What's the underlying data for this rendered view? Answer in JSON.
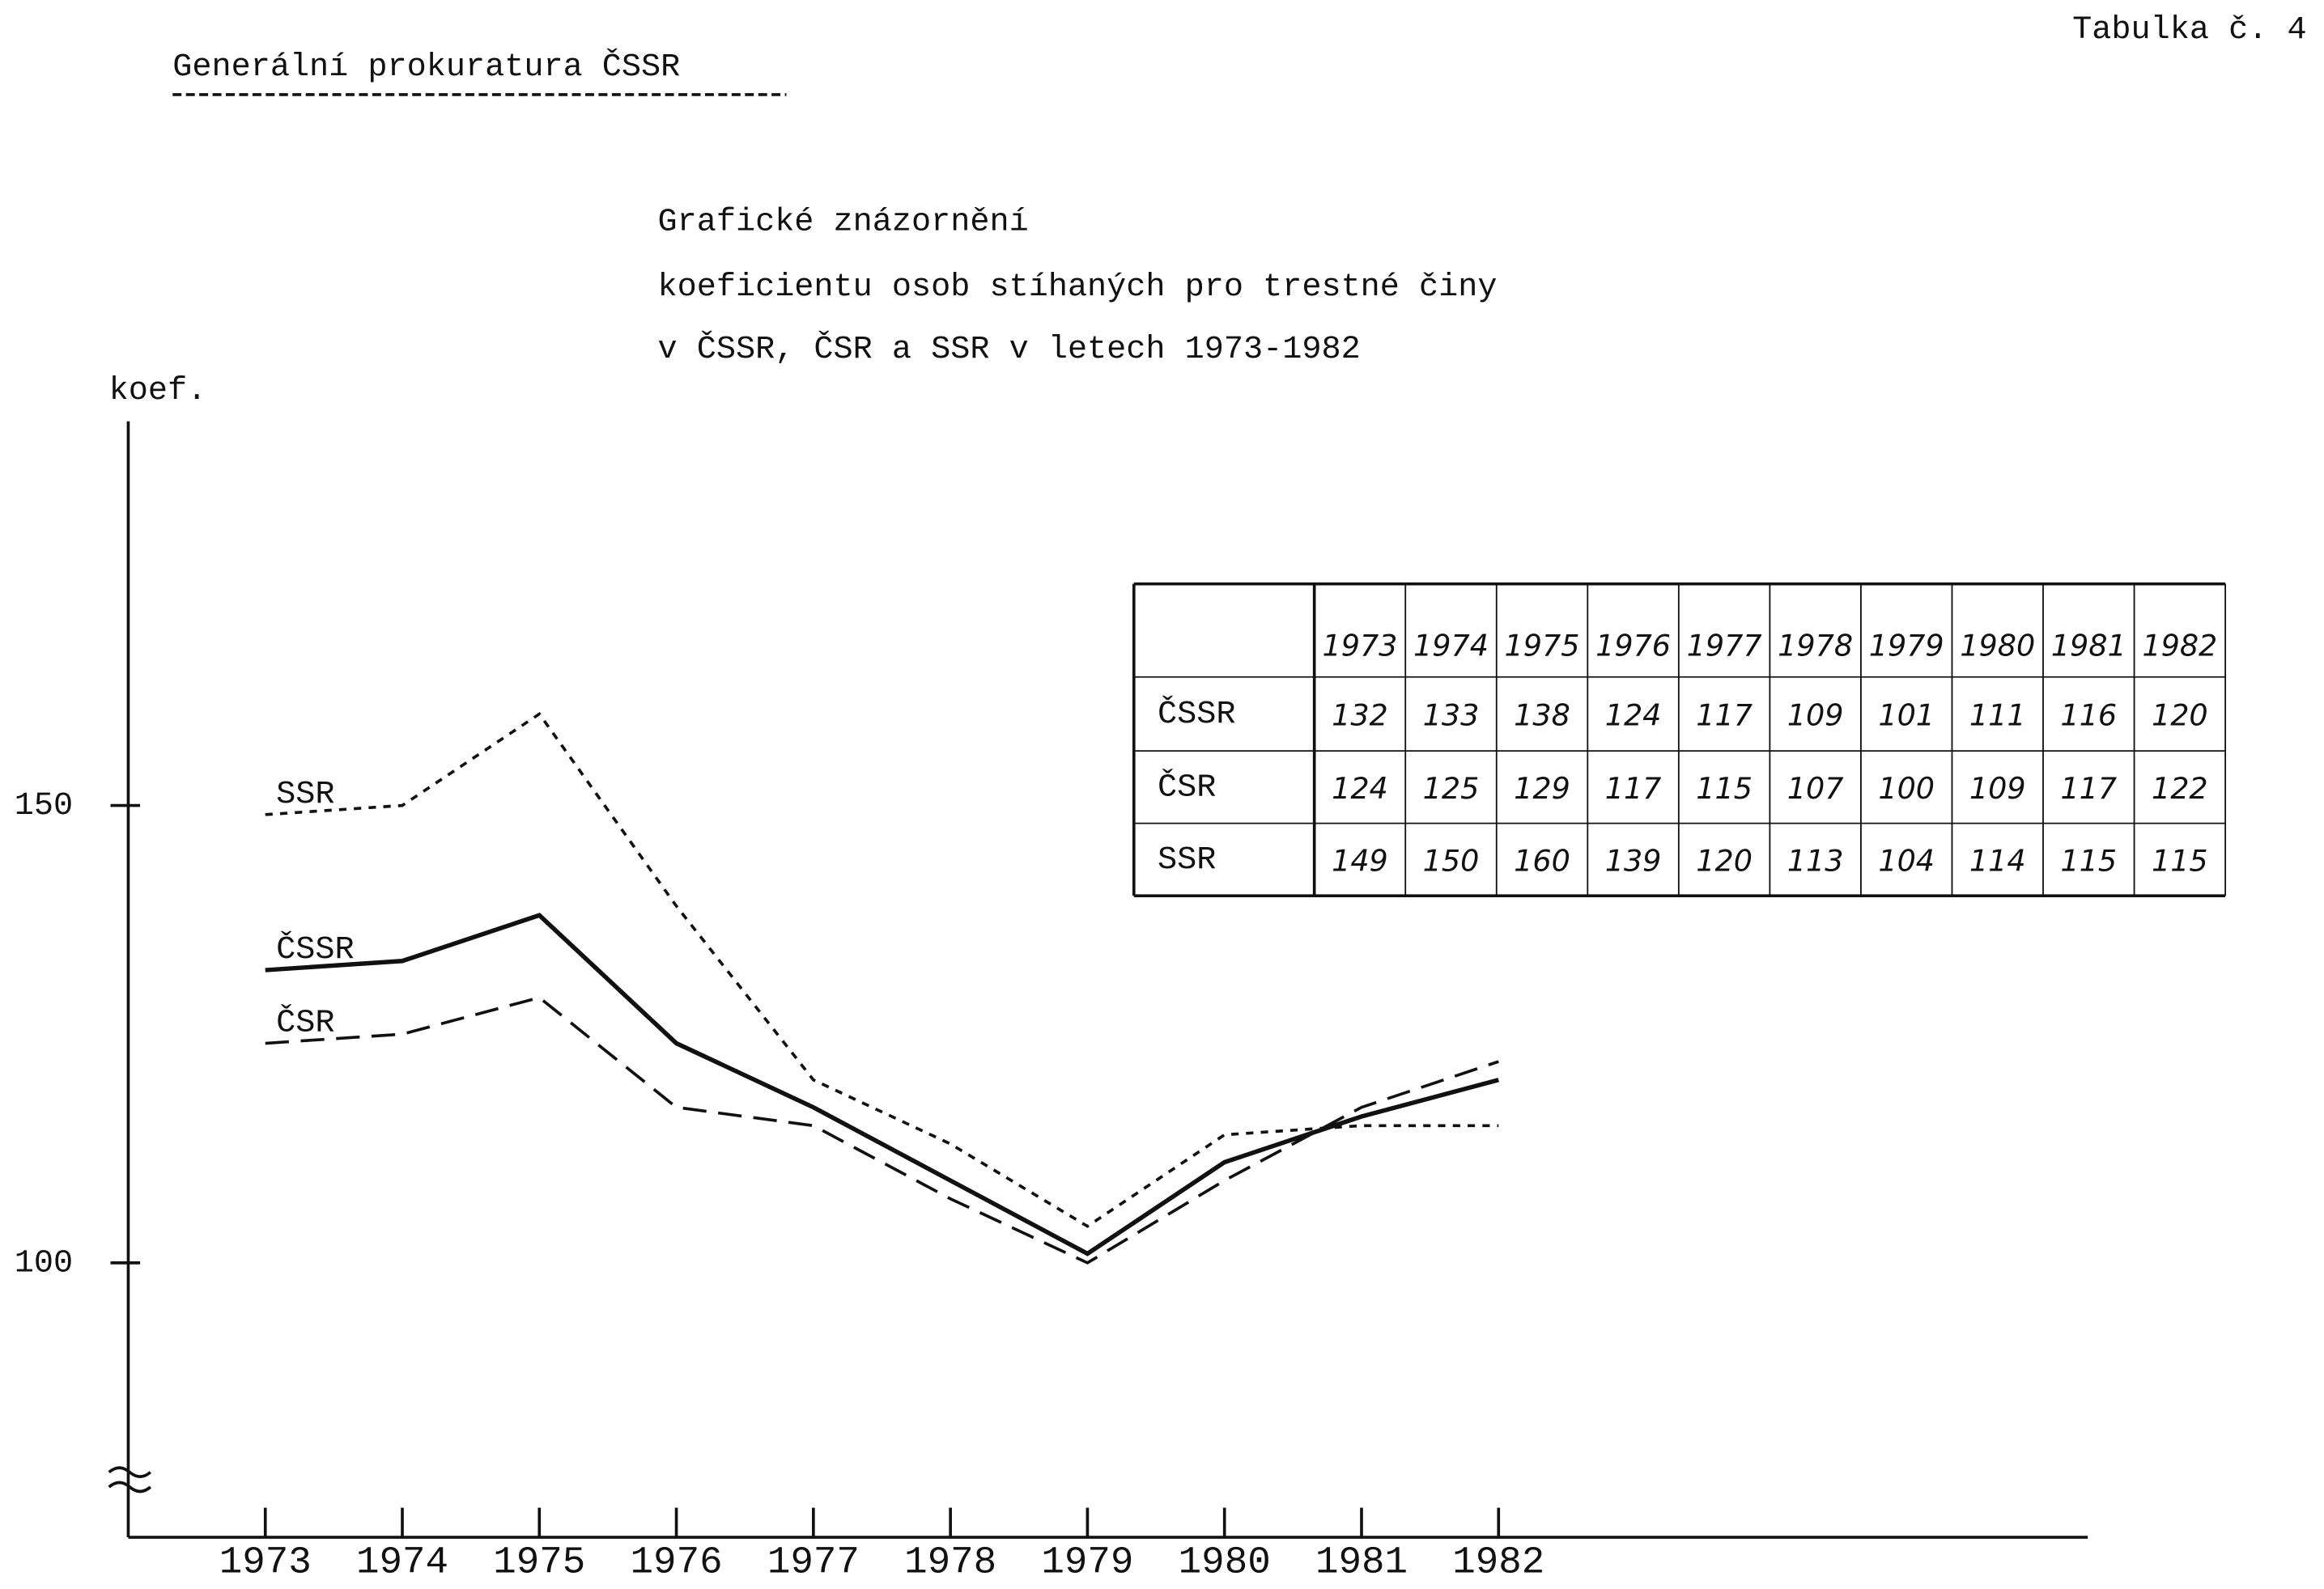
{
  "document": {
    "organization": "Generální prokuratura ČSSR",
    "table_label": "Tabulka č. 4"
  },
  "chart_data": {
    "type": "line",
    "title": [
      "Grafické znázornění",
      "koeficientu osob stíhaných pro trestné činy",
      "v ČSSR, ČSR a SSR v letech 1973-1982"
    ],
    "y_label": "koef.",
    "x": [
      1973,
      1974,
      1975,
      1976,
      1977,
      1978,
      1979,
      1980,
      1981,
      1982
    ],
    "xlim": [
      1972,
      1986.3
    ],
    "xticks": [
      1973,
      1974,
      1975,
      1976,
      1977,
      1978,
      1979,
      1980,
      1981,
      1982
    ],
    "ylim": [
      70,
      192
    ],
    "yticks": [
      150,
      100
    ],
    "series": [
      {
        "name": "ČSSR",
        "color": "#111111",
        "dash": "solid",
        "values": [
          132,
          133,
          138,
          124,
          117,
          109,
          101,
          111,
          116,
          120
        ]
      },
      {
        "name": "ČSR",
        "color": "#111111",
        "dash": "dashed",
        "values": [
          124,
          125,
          129,
          117,
          115,
          107,
          100,
          109,
          117,
          122
        ]
      },
      {
        "name": "SSR",
        "color": "#111111",
        "dash": "dotted",
        "values": [
          149,
          150,
          160,
          139,
          120,
          113,
          104,
          114,
          115,
          115
        ]
      }
    ]
  }
}
